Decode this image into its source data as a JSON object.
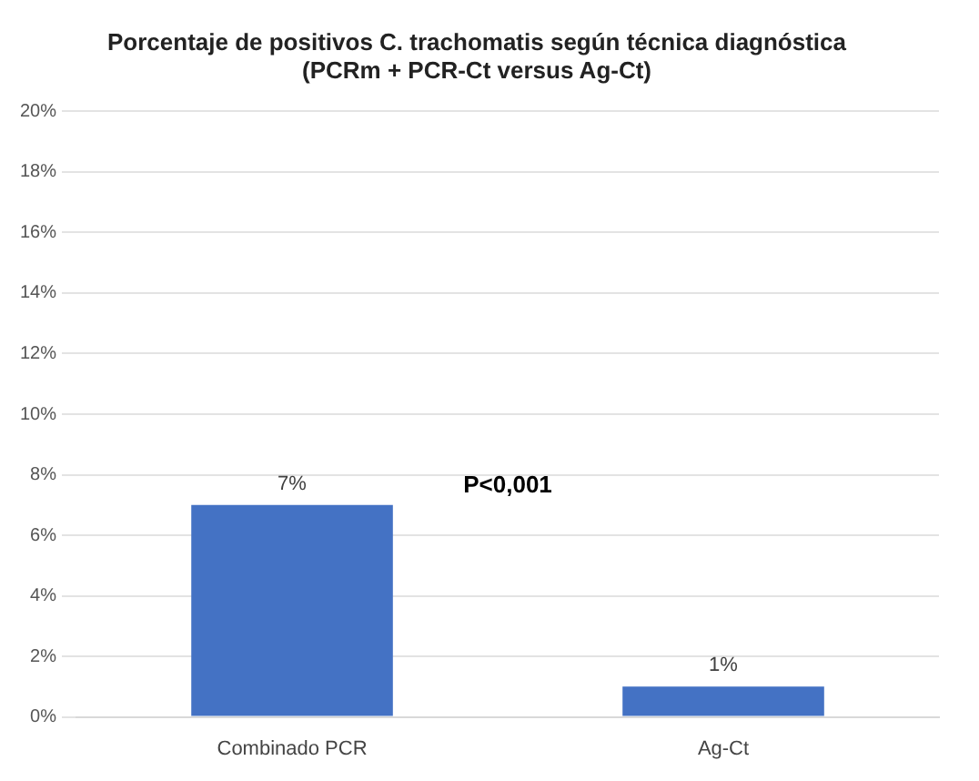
{
  "chart_data": {
    "type": "bar",
    "title": "Porcentaje de positivos C. trachomatis según técnica diagnóstica",
    "subtitle": "(PCRm + PCR-Ct versus Ag-Ct)",
    "categories": [
      "Combinado PCR",
      "Ag-Ct"
    ],
    "values": [
      7,
      1
    ],
    "color": "#4472c4",
    "value_labels": [
      "7%",
      "1%"
    ],
    "ylim": [
      0,
      20
    ],
    "yticks": [
      {
        "value": 0,
        "label": "0%"
      },
      {
        "value": 2,
        "label": "2%"
      },
      {
        "value": 4,
        "label": "4%"
      },
      {
        "value": 6,
        "label": "6%"
      },
      {
        "value": 8,
        "label": "8%"
      },
      {
        "value": 10,
        "label": "10%"
      },
      {
        "value": 12,
        "label": "12%"
      },
      {
        "value": 14,
        "label": "14%"
      },
      {
        "value": 16,
        "label": "16%"
      },
      {
        "value": 18,
        "label": "18%"
      },
      {
        "value": 20,
        "label": "20%"
      }
    ],
    "annotations": [
      "P<0,001"
    ],
    "grid": "y",
    "legend": false
  }
}
